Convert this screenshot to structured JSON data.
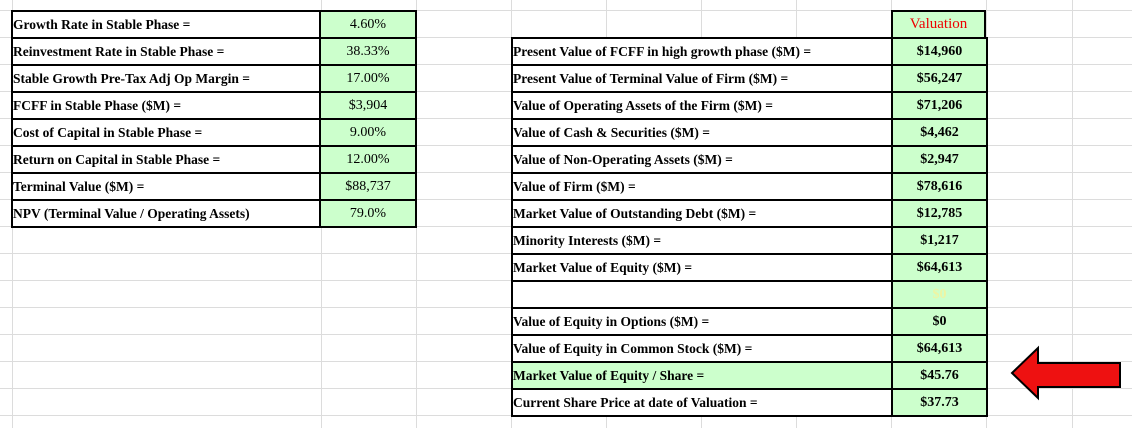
{
  "colors": {
    "cell_green": "#ccffcc",
    "header_red": "#ee0000",
    "faint_value": "#eef5a3",
    "arrow_red": "#ee1111",
    "table_border": "#000000",
    "gridline": "#dcdcdc"
  },
  "left_table": {
    "rows": [
      {
        "label": "Growth Rate in Stable Phase =",
        "value": "4.60%"
      },
      {
        "label": "Reinvestment Rate in Stable Phase =",
        "value": "38.33%"
      },
      {
        "label": "Stable Growth Pre-Tax Adj Op Margin =",
        "value": "17.00%"
      },
      {
        "label": "FCFF in Stable Phase ($M) =",
        "value": "$3,904"
      },
      {
        "label": "Cost of Capital in Stable Phase =",
        "value": "9.00%"
      },
      {
        "label": "Return on Capital in Stable Phase =",
        "value": "12.00%"
      },
      {
        "label": "Terminal Value ($M) =",
        "value": "$88,737"
      },
      {
        "label": "NPV (Terminal Value / Operating Assets)",
        "value": "79.0%"
      }
    ]
  },
  "right_table": {
    "header": "Valuation",
    "rows": [
      {
        "label": "Present Value of FCFF in high growth phase ($M) =",
        "value": "$14,960"
      },
      {
        "label": "Present Value of Terminal Value of Firm ($M) =",
        "value": "$56,247"
      },
      {
        "label": "Value of Operating Assets of the Firm ($M) =",
        "value": "$71,206"
      },
      {
        "label": "Value of Cash  & Securities ($M) =",
        "value": "$4,462"
      },
      {
        "label": "Value of Non-Operating Assets ($M) =",
        "value": "$2,947"
      },
      {
        "label": "Value of Firm ($M) =",
        "value": "$78,616"
      },
      {
        "label": "Market Value of Outstanding Debt ($M) =",
        "value": "$12,785"
      },
      {
        "label": "Minority Interests ($M) =",
        "value": "$1,217"
      },
      {
        "label": "Market Value of Equity ($M) =",
        "value": "$64,613"
      },
      {
        "label": "",
        "value": "$0",
        "faint": true
      },
      {
        "label": "Value of Equity in Options ($M) =",
        "value": "$0"
      },
      {
        "label": "Value of Equity in Common Stock ($M) =",
        "value": "$64,613"
      },
      {
        "label": "Market Value of Equity / Share  =",
        "value": "$45.76",
        "highlight": true
      },
      {
        "label": "Current Share Price at date of Valuation =",
        "value": "$37.73"
      }
    ]
  },
  "annotations": {
    "arrow_shape": "left-arrow",
    "arrow_points_at": "$45.76"
  }
}
